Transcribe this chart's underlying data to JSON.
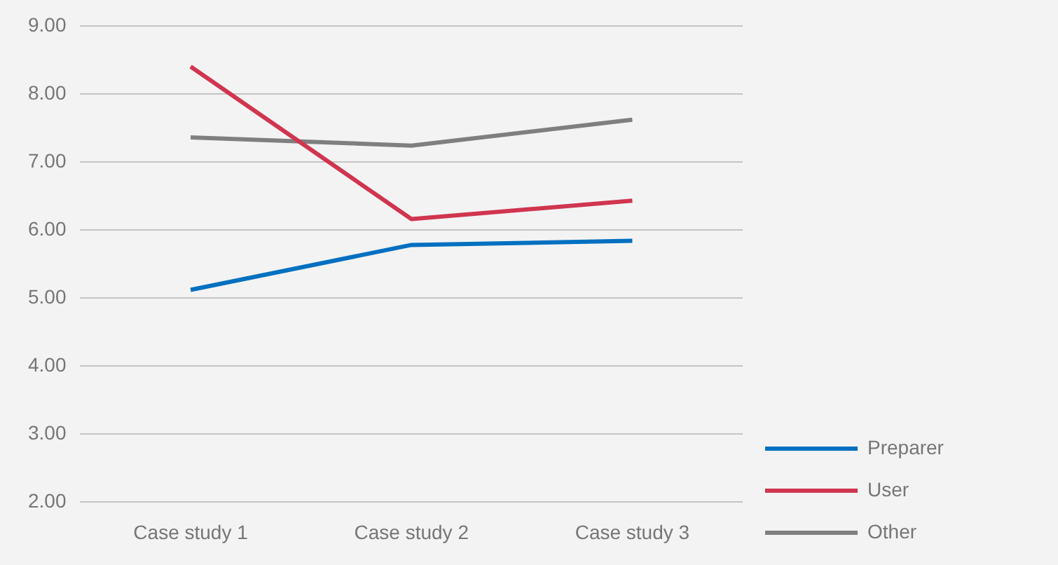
{
  "chart_data": {
    "type": "line",
    "categories": [
      "Case study 1",
      "Case study 2",
      "Case study 3"
    ],
    "series": [
      {
        "name": "Preparer",
        "color": "#0070c0",
        "values": [
          5.12,
          5.78,
          5.84
        ]
      },
      {
        "name": "User",
        "color": "#d0354f",
        "values": [
          8.4,
          6.16,
          6.43
        ]
      },
      {
        "name": "Other",
        "color": "#7f7f7f",
        "values": [
          7.36,
          7.24,
          7.62
        ]
      }
    ],
    "ylim": [
      2,
      9
    ],
    "yticks": [
      {
        "value": 2,
        "label": "2.00"
      },
      {
        "value": 3,
        "label": "3.00"
      },
      {
        "value": 4,
        "label": "4.00"
      },
      {
        "value": 5,
        "label": "5.00"
      },
      {
        "value": 6,
        "label": "6.00"
      },
      {
        "value": 7,
        "label": "7.00"
      },
      {
        "value": 8,
        "label": "8.00"
      },
      {
        "value": 9,
        "label": "9.00"
      }
    ],
    "grid": "y",
    "legend": "bottom right",
    "marker": "none",
    "line_style": "solid"
  }
}
